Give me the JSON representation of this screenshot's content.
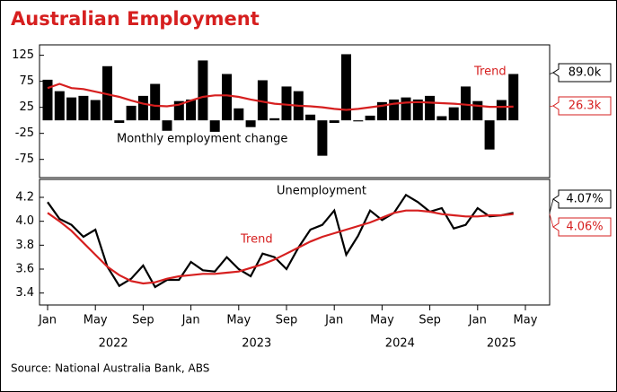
{
  "title": "Australian Employment",
  "source": "Source: National Australia Bank, ABS",
  "chart_data": [
    {
      "type": "bar",
      "x": [
        "2022-01",
        "2022-02",
        "2022-03",
        "2022-04",
        "2022-05",
        "2022-06",
        "2022-07",
        "2022-08",
        "2022-09",
        "2022-10",
        "2022-11",
        "2022-12",
        "2023-01",
        "2023-02",
        "2023-03",
        "2023-04",
        "2023-05",
        "2023-06",
        "2023-07",
        "2023-08",
        "2023-09",
        "2023-10",
        "2023-11",
        "2023-12",
        "2024-01",
        "2024-02",
        "2024-03",
        "2024-04",
        "2024-05",
        "2024-06",
        "2024-07",
        "2024-08",
        "2024-09",
        "2024-10",
        "2024-11",
        "2024-12",
        "2025-01",
        "2025-02",
        "2025-03",
        "2025-04"
      ],
      "series": [
        {
          "name": "Monthly employment change",
          "type": "bar",
          "color": "#000000",
          "end_label": "89.0k",
          "values": [
            78,
            56,
            44,
            47,
            39,
            104,
            -5,
            28,
            47,
            70,
            -20,
            37,
            40,
            115,
            -22,
            89,
            23,
            -13,
            77,
            4,
            65,
            56,
            11,
            -68,
            -5,
            127,
            -2,
            9,
            35,
            40,
            44,
            40,
            47,
            8,
            25,
            65,
            37,
            -56,
            39,
            89
          ]
        },
        {
          "name": "Trend",
          "type": "line",
          "color": "#d61f1f",
          "end_label": "26.3k",
          "values": [
            62,
            70,
            62,
            60,
            55,
            50,
            45,
            38,
            32,
            28,
            27,
            30,
            38,
            45,
            48,
            48,
            45,
            40,
            36,
            32,
            30,
            28,
            27,
            25,
            22,
            20,
            22,
            25,
            28,
            32,
            34,
            35,
            34,
            33,
            32,
            30,
            28,
            26,
            26,
            26.3
          ]
        }
      ],
      "ylim": [
        -110,
        145
      ],
      "yticks": [
        125,
        75,
        25,
        -25,
        -75
      ]
    },
    {
      "type": "line",
      "x": [
        "2022-01",
        "2022-02",
        "2022-03",
        "2022-04",
        "2022-05",
        "2022-06",
        "2022-07",
        "2022-08",
        "2022-09",
        "2022-10",
        "2022-11",
        "2022-12",
        "2023-01",
        "2023-02",
        "2023-03",
        "2023-04",
        "2023-05",
        "2023-06",
        "2023-07",
        "2023-08",
        "2023-09",
        "2023-10",
        "2023-11",
        "2023-12",
        "2024-01",
        "2024-02",
        "2024-03",
        "2024-04",
        "2024-05",
        "2024-06",
        "2024-07",
        "2024-08",
        "2024-09",
        "2024-10",
        "2024-11",
        "2024-12",
        "2025-01",
        "2025-02",
        "2025-03",
        "2025-04"
      ],
      "series": [
        {
          "name": "Unemployment",
          "type": "line",
          "color": "#000000",
          "end_label": "4.07%",
          "values": [
            4.16,
            4.02,
            3.97,
            3.87,
            3.93,
            3.62,
            3.46,
            3.52,
            3.63,
            3.45,
            3.51,
            3.51,
            3.66,
            3.59,
            3.58,
            3.7,
            3.6,
            3.54,
            3.73,
            3.7,
            3.6,
            3.78,
            3.93,
            3.97,
            4.09,
            3.72,
            3.88,
            4.09,
            4.01,
            4.07,
            4.22,
            4.16,
            4.08,
            4.11,
            3.94,
            3.97,
            4.11,
            4.04,
            4.05,
            4.07
          ]
        },
        {
          "name": "Trend",
          "type": "line",
          "color": "#d61f1f",
          "end_label": "4.06%",
          "values": [
            4.07,
            4.0,
            3.92,
            3.82,
            3.72,
            3.62,
            3.55,
            3.5,
            3.48,
            3.49,
            3.52,
            3.54,
            3.55,
            3.56,
            3.56,
            3.57,
            3.58,
            3.61,
            3.64,
            3.68,
            3.73,
            3.78,
            3.83,
            3.87,
            3.9,
            3.93,
            3.96,
            3.99,
            4.03,
            4.07,
            4.09,
            4.09,
            4.08,
            4.06,
            4.05,
            4.04,
            4.04,
            4.05,
            4.05,
            4.06
          ]
        }
      ],
      "ylim": [
        3.3,
        4.35
      ],
      "yticks": [
        4.2,
        {
          "value": 4,
          "label": "4.0"
        },
        3.8,
        3.6,
        3.4
      ],
      "xticks": [
        {
          "value": "2022-01",
          "label": "Jan"
        },
        {
          "value": "2022-05",
          "label": "May"
        },
        {
          "value": "2022-09",
          "label": "Sep"
        },
        {
          "value": "2023-01",
          "label": "Jan"
        },
        {
          "value": "2023-05",
          "label": "May"
        },
        {
          "value": "2023-09",
          "label": "Sep"
        },
        {
          "value": "2024-01",
          "label": "Jan"
        },
        {
          "value": "2024-05",
          "label": "May"
        },
        {
          "value": "2024-09",
          "label": "Sep"
        },
        {
          "value": "2025-01",
          "label": "Jan"
        },
        {
          "value": "2025-05",
          "label": "May"
        }
      ],
      "year_labels": [
        "2022",
        "2023",
        "2024",
        "2025"
      ]
    }
  ]
}
